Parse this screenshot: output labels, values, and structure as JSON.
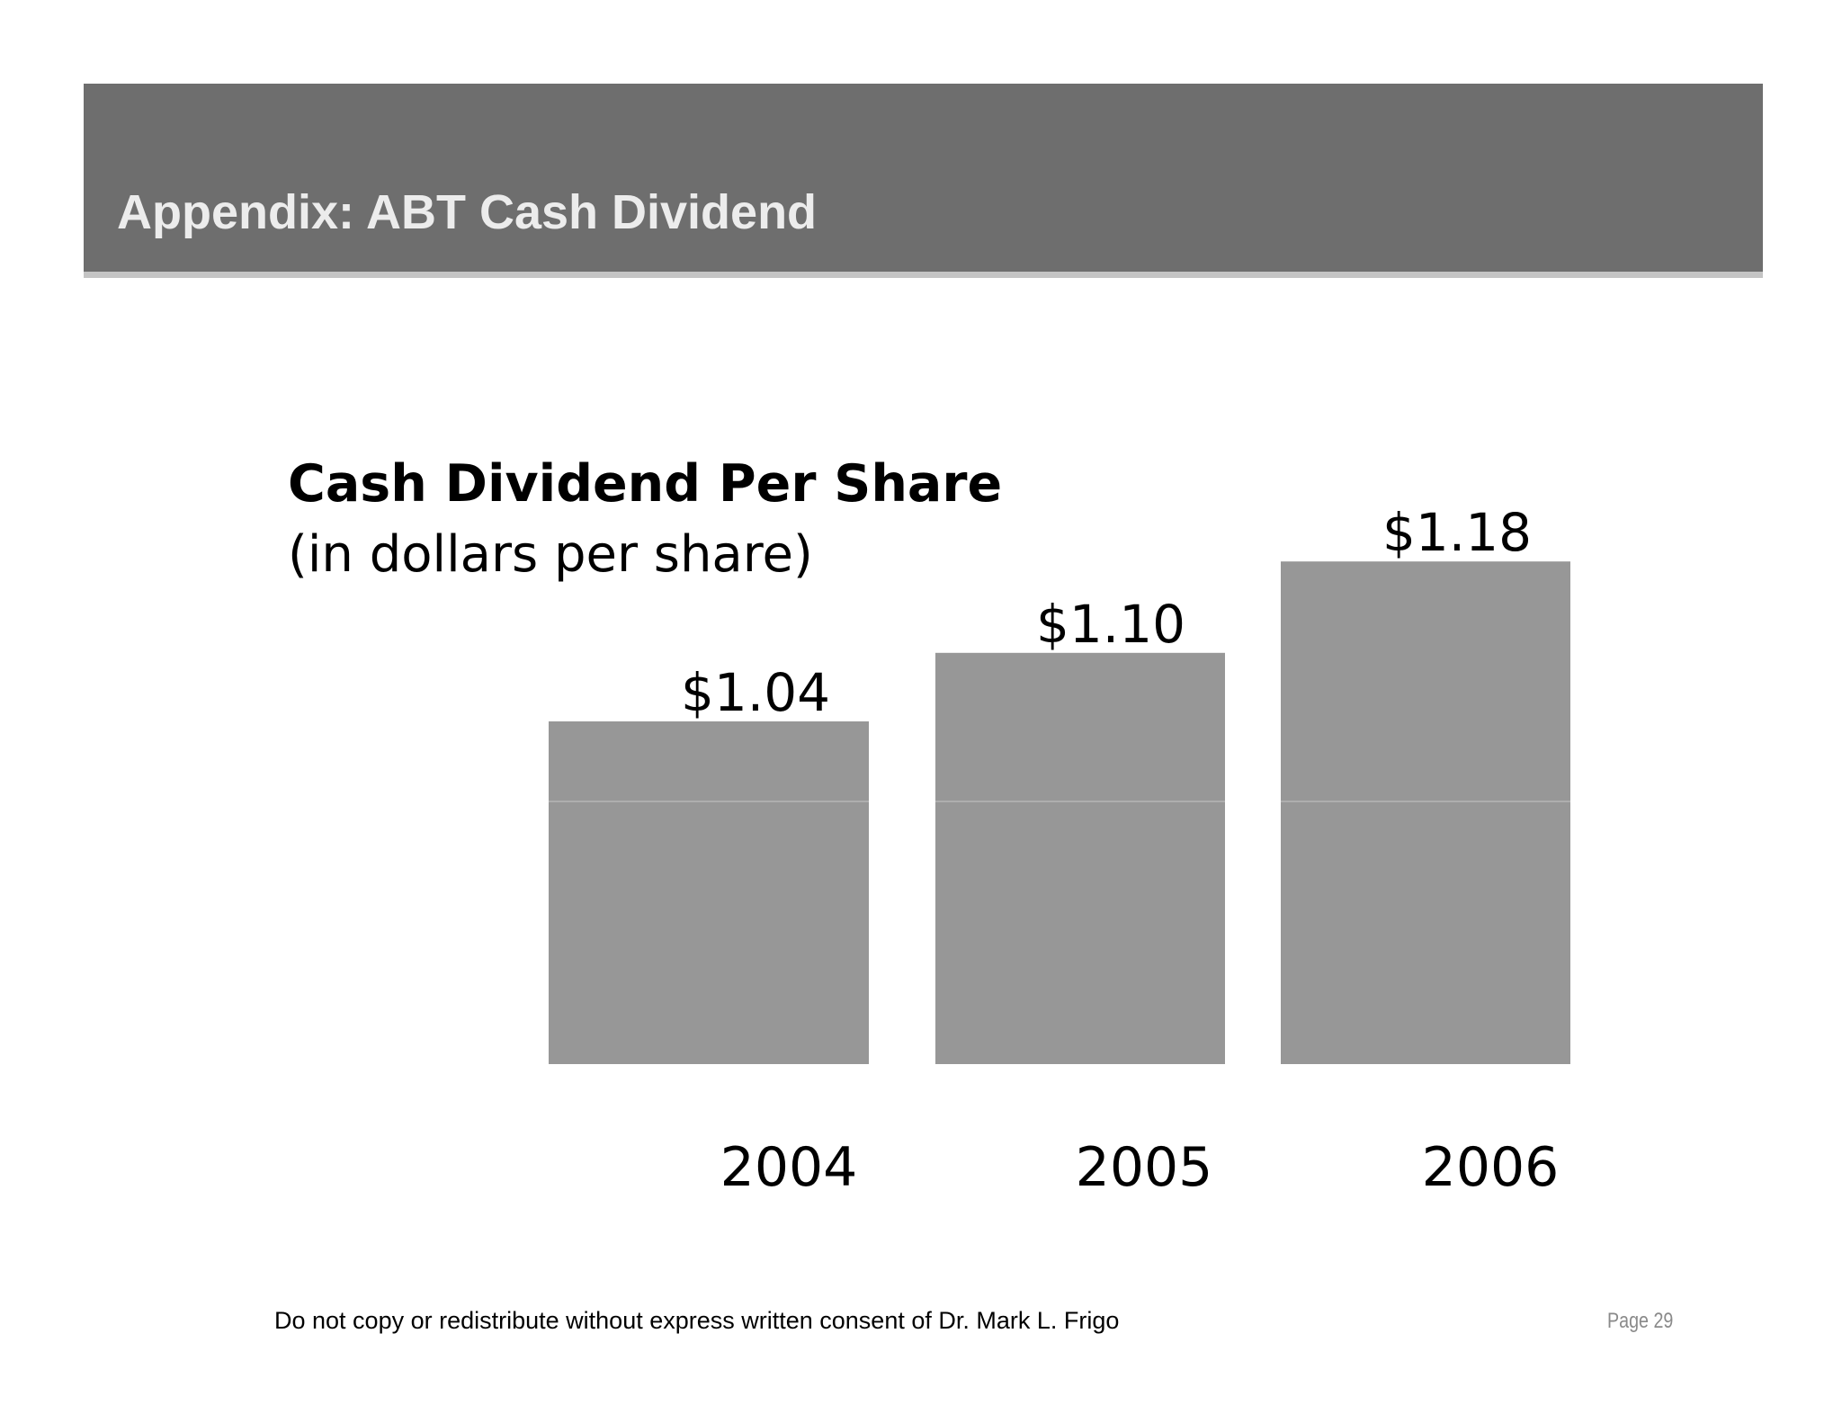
{
  "header": {
    "title": "Appendix:  ABT Cash Dividend"
  },
  "chart_data": {
    "type": "bar",
    "title": "Cash Dividend Per Share",
    "subtitle": "(in dollars per share)",
    "categories": [
      "2004",
      "2005",
      "2006"
    ],
    "values": [
      1.04,
      1.1,
      1.18
    ],
    "value_labels": [
      "$1.04",
      "$1.10",
      "$1.18"
    ],
    "xlabel": "",
    "ylabel": "",
    "bar_color": "#979797",
    "grid": false,
    "legend": "none"
  },
  "footer": {
    "notice": "Do not copy or redistribute without express written consent of Dr. Mark L. Frigo",
    "page_label": "Page",
    "page_number": "29"
  }
}
